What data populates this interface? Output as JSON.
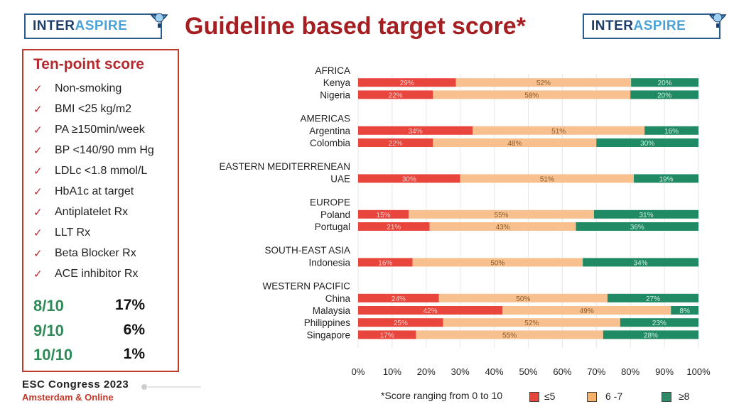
{
  "header": {
    "logo_left": {
      "part1": "INTER",
      "part2": "ASPIRE"
    },
    "logo_right": {
      "part1": "INTER",
      "part2": "ASPIRE"
    },
    "title": "Guideline based target score*"
  },
  "sidebar": {
    "title": "Ten-point score",
    "criteria": [
      "Non-smoking",
      "BMI <25 kg/m2",
      "PA ≥150min/week",
      "BP <140/90 mm Hg",
      "LDLc <1.8 mmol/L",
      "HbA1c at target",
      "Antiplatelet Rx",
      "LLT Rx",
      "Beta Blocker Rx",
      "ACE inhibitor Rx"
    ],
    "scores": [
      {
        "label": "8/10",
        "value": "17%"
      },
      {
        "label": "9/10",
        "value": "6%"
      },
      {
        "label": "10/10",
        "value": "1%"
      }
    ]
  },
  "event": {
    "line1": "ESC Congress 2023",
    "line2": "Amsterdam & Online"
  },
  "footnote": "*Score ranging from 0 to 10",
  "legend": [
    {
      "label": "≤5",
      "color": "#e8453c"
    },
    {
      "label": "6 -7",
      "color": "#f6b26b"
    },
    {
      "label": "≥8",
      "color": "#2e8b67"
    }
  ],
  "colors": {
    "low": "#e8453c",
    "mid": "#f7c08e",
    "high": "#1f8a63",
    "title": "#a51e22",
    "accent": "#b5282e"
  },
  "chart_data": {
    "type": "bar",
    "orientation": "horizontal",
    "stacked": true,
    "xlim": [
      0,
      100
    ],
    "xticks": [
      "0%",
      "10%",
      "20%",
      "30%",
      "40%",
      "50%",
      "60%",
      "70%",
      "80%",
      "90%",
      "100%"
    ],
    "series_names": [
      "≤5",
      "6 -7",
      "≥8"
    ],
    "groups": [
      {
        "region": "AFRICA",
        "rows": [
          {
            "country": "Kenya",
            "values": [
              29,
              52,
              20
            ]
          },
          {
            "country": "Nigeria",
            "values": [
              22,
              58,
              20
            ]
          }
        ]
      },
      {
        "region": "AMERICAS",
        "rows": [
          {
            "country": "Argentina",
            "values": [
              34,
              51,
              16
            ]
          },
          {
            "country": "Colombia",
            "values": [
              22,
              48,
              30
            ]
          }
        ]
      },
      {
        "region": "EASTERN MEDITERRENEAN",
        "rows": [
          {
            "country": "UAE",
            "values": [
              30,
              51,
              19
            ]
          }
        ]
      },
      {
        "region": "EUROPE",
        "rows": [
          {
            "country": "Poland",
            "values": [
              15,
              55,
              31
            ]
          },
          {
            "country": "Portugal",
            "values": [
              21,
              43,
              36
            ]
          }
        ]
      },
      {
        "region": "SOUTH-EAST ASIA",
        "rows": [
          {
            "country": "Indonesia",
            "values": [
              16,
              50,
              34
            ]
          }
        ]
      },
      {
        "region": "WESTERN PACIFIC",
        "rows": [
          {
            "country": "China",
            "values": [
              24,
              50,
              27
            ]
          },
          {
            "country": "Malaysia",
            "values": [
              42,
              49,
              8
            ]
          },
          {
            "country": "Philippines",
            "values": [
              25,
              52,
              23
            ]
          },
          {
            "country": "Singapore",
            "values": [
              17,
              55,
              28
            ]
          }
        ]
      }
    ]
  }
}
